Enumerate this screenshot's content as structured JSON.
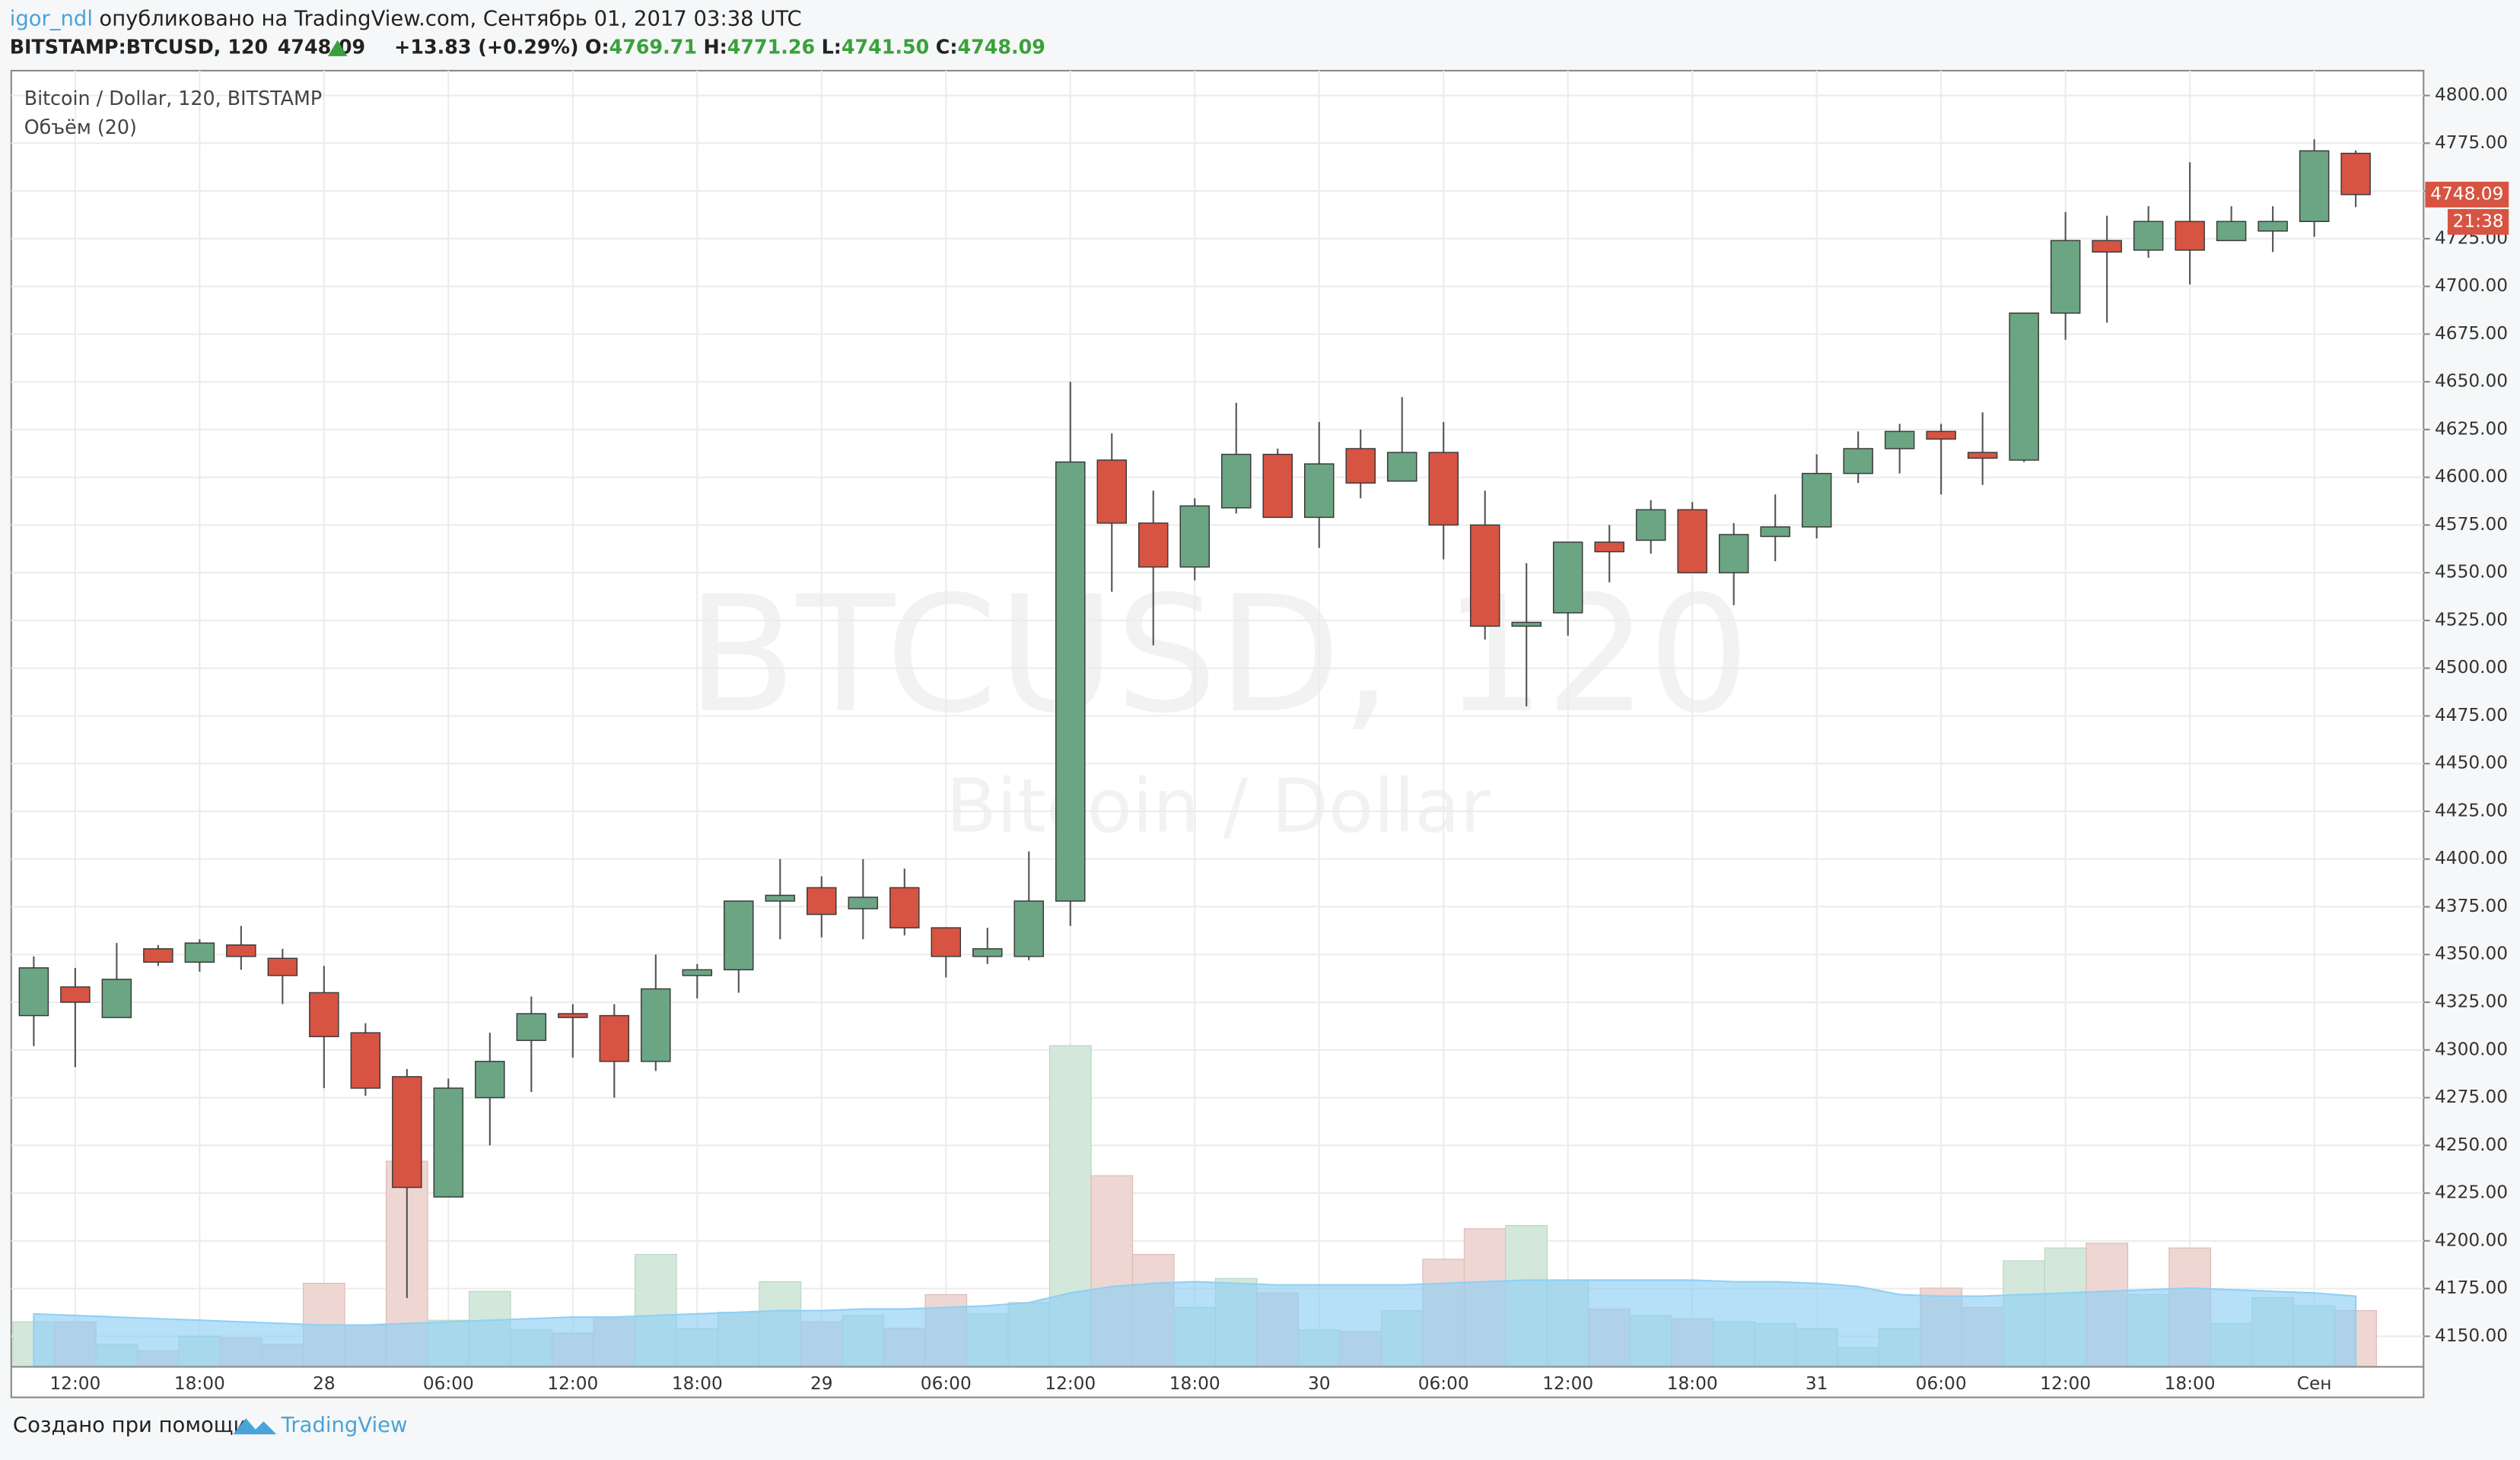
{
  "header": {
    "author": "igor_ndl",
    "published": "опубликовано на TradingView.com, Сентябрь 01, 2017 03:38 UTC",
    "symbol": "BITSTAMP:BTCUSD, 120",
    "last": "4748.09",
    "change": "+13.83 (+0.29%)",
    "o_label": "O:",
    "o": "4769.71",
    "h_label": "H:",
    "h": "4771.26",
    "l_label": "L:",
    "l": "4741.50",
    "c_label": "C:",
    "c": "4748.09"
  },
  "footer": {
    "made_with": "Создано при помощи",
    "brand": "TradingView"
  },
  "chart_data": {
    "type": "candlestick",
    "title": "Bitcoin / Dollar, 120, BITSTAMP",
    "watermark": "BTCUSD, 120",
    "watermark_subtitle": "Bitcoin / Dollar",
    "categories": [
      null,
      "12:00",
      null,
      null,
      "18:00",
      null,
      null,
      "28",
      null,
      null,
      "06:00",
      null,
      null,
      "12:00",
      null,
      null,
      "18:00",
      null,
      null,
      "29",
      null,
      null,
      "06:00",
      null,
      null,
      "12:00",
      null,
      null,
      "18:00",
      null,
      null,
      "30",
      null,
      null,
      "06:00",
      null,
      null,
      "12:00",
      null,
      null,
      "18:00",
      null,
      null,
      "31",
      null,
      null,
      "06:00",
      null,
      null,
      "12:00",
      null,
      null,
      "18:00",
      null,
      null,
      "Сен",
      null
    ],
    "open": [
      4318,
      4333,
      4317,
      4353,
      4346,
      4355,
      4348,
      4330,
      4309,
      4286,
      4223,
      4275,
      4305,
      4319,
      4318,
      4294,
      4339,
      4342,
      4378,
      4385,
      4374,
      4385,
      4364,
      4349,
      4349,
      4378,
      4609,
      4576,
      4553,
      4584,
      4612,
      4579,
      4615,
      4598,
      4613,
      4575,
      4522,
      4529,
      4566,
      4567,
      4583,
      4550,
      4569,
      4574,
      4602,
      4615,
      4624,
      4613,
      4609,
      4686,
      4724,
      4719,
      4734,
      4724,
      4729,
      4734,
      4769.71
    ],
    "high": [
      4349,
      4343,
      4356,
      4355,
      4358,
      4365,
      4353,
      4344,
      4314,
      4290,
      4285,
      4309,
      4328,
      4324,
      4324,
      4350,
      4345,
      4378,
      4400,
      4391,
      4400,
      4395,
      4364,
      4364,
      4404,
      4650,
      4623,
      4593,
      4589,
      4639,
      4615,
      4629,
      4625,
      4642,
      4629,
      4593,
      4555,
      4566,
      4575,
      4588,
      4587,
      4576,
      4591,
      4612,
      4624,
      4628,
      4628,
      4634,
      4686,
      4739,
      4737,
      4742,
      4765,
      4742,
      4742,
      4777,
      4771.26
    ],
    "low": [
      4302,
      4291,
      4317,
      4344,
      4341,
      4342,
      4324,
      4280,
      4276,
      4170,
      4223,
      4250,
      4278,
      4296,
      4275,
      4289,
      4327,
      4330,
      4358,
      4359,
      4358,
      4360,
      4338,
      4345,
      4347,
      4365,
      4540,
      4512,
      4546,
      4581,
      4579,
      4563,
      4589,
      4598,
      4557,
      4515,
      4480,
      4517,
      4545,
      4560,
      4550,
      4533,
      4556,
      4568,
      4597,
      4602,
      4591,
      4596,
      4608,
      4672,
      4681,
      4715,
      4701,
      4724,
      4718,
      4726,
      4741.5
    ],
    "close": [
      4343,
      4325,
      4337,
      4346,
      4356,
      4349,
      4339,
      4307,
      4280,
      4228,
      4280,
      4294,
      4319,
      4317,
      4294,
      4332,
      4342,
      4378,
      4381,
      4371,
      4380,
      4364,
      4349,
      4353,
      4378,
      4608,
      4576,
      4553,
      4585,
      4612,
      4579,
      4607,
      4597,
      4613,
      4575,
      4522,
      4524,
      4566,
      4561,
      4583,
      4550,
      4570,
      4574,
      4602,
      4615,
      4624,
      4620,
      4610,
      4686,
      4724,
      4718,
      4734,
      4719,
      4734,
      4734,
      4771,
      4748.09
    ],
    "up_color": "#6ba583",
    "down_color": "#d75442",
    "ylim": [
      4134,
      4813
    ],
    "yticks": [
      {
        "value": 4150,
        "label": "4150.00"
      },
      {
        "value": 4175,
        "label": "4175.00"
      },
      {
        "value": 4200,
        "label": "4200.00"
      },
      {
        "value": 4225,
        "label": "4225.00"
      },
      {
        "value": 4250,
        "label": "4250.00"
      },
      {
        "value": 4275,
        "label": "4275.00"
      },
      {
        "value": 4300,
        "label": "4300.00"
      },
      {
        "value": 4325,
        "label": "4325.00"
      },
      {
        "value": 4350,
        "label": "4350.00"
      },
      {
        "value": 4375,
        "label": "4375.00"
      },
      {
        "value": 4400,
        "label": "4400.00"
      },
      {
        "value": 4425,
        "label": "4425.00"
      },
      {
        "value": 4450,
        "label": "4450.00"
      },
      {
        "value": 4475,
        "label": "4475.00"
      },
      {
        "value": 4500,
        "label": "4500.00"
      },
      {
        "value": 4525,
        "label": "4525.00"
      },
      {
        "value": 4550,
        "label": "4550.00"
      },
      {
        "value": 4575,
        "label": "4575.00"
      },
      {
        "value": 4600,
        "label": "4600.00"
      },
      {
        "value": 4625,
        "label": "4625.00"
      },
      {
        "value": 4650,
        "label": "4650.00"
      },
      {
        "value": 4675,
        "label": "4675.00"
      },
      {
        "value": 4700,
        "label": "4700.00"
      },
      {
        "value": 4725,
        "label": "4725.00"
      },
      {
        "value": 4750,
        "label": "4750.00"
      },
      {
        "value": 4775,
        "label": "4775.00"
      },
      {
        "value": 4800,
        "label": "4800.00"
      }
    ],
    "grid": true,
    "last_price": 4748.09,
    "countdown": "21:38",
    "volume": {
      "name": "Объём (20)",
      "ylim": [
        0,
        807
      ],
      "up_color": "#d3e8da",
      "down_color": "#eed6d3",
      "values": [
        28,
        28,
        14,
        10,
        19,
        18,
        14,
        52,
        26,
        128,
        29,
        47,
        23,
        21,
        30,
        70,
        24,
        34,
        53,
        28,
        32,
        24,
        45,
        33,
        40,
        200,
        119,
        70,
        37,
        55,
        46,
        23,
        22,
        35,
        67,
        86,
        88,
        54,
        36,
        32,
        30,
        28,
        27,
        24,
        12,
        24,
        49,
        37,
        66,
        74,
        77,
        45,
        74,
        27,
        43,
        38,
        35
      ]
    },
    "volume_ma": {
      "color": "#8fd0f5",
      "values": [
        33,
        32,
        31,
        30,
        29,
        28,
        27,
        26,
        26,
        27,
        28,
        29,
        30,
        31,
        31,
        32,
        33,
        34,
        35,
        35,
        36,
        36,
        37,
        38,
        40,
        46,
        50,
        52,
        53,
        52,
        51,
        51,
        51,
        51,
        52,
        53,
        54,
        54,
        54,
        54,
        54,
        53,
        53,
        52,
        50,
        45,
        44,
        44,
        45,
        46,
        47,
        48,
        49,
        48,
        47,
        46,
        44
      ]
    }
  }
}
